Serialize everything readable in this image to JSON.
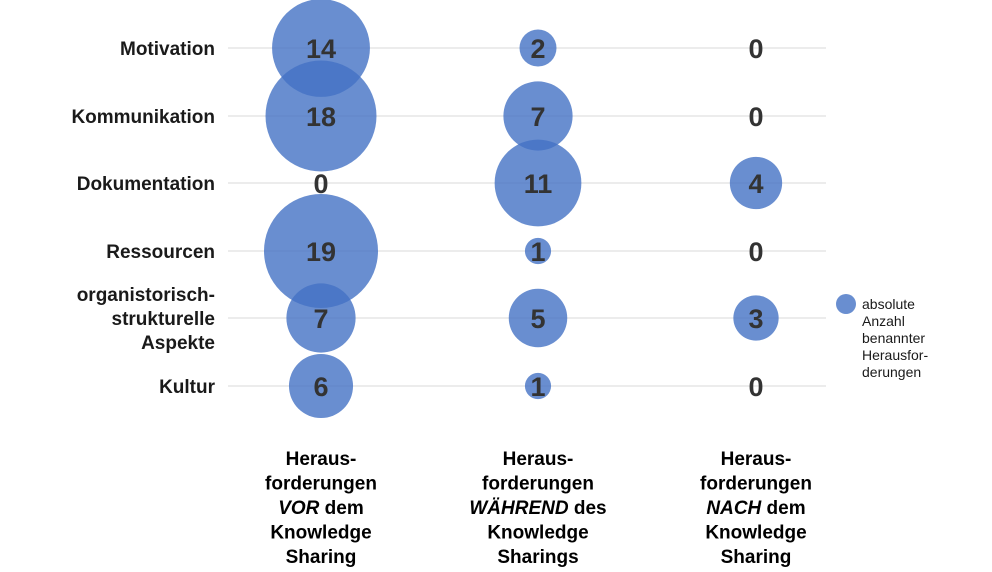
{
  "chart_data": {
    "type": "bubble",
    "rows": [
      "Motivation",
      "Kommunikation",
      "Dokumentation",
      "Ressourcen",
      "organistorisch-strukturelle Aspekte",
      "Kultur"
    ],
    "row_label_lines": [
      [
        "Motivation"
      ],
      [
        "Kommunikation"
      ],
      [
        "Dokumentation"
      ],
      [
        "Ressourcen"
      ],
      [
        "organistorisch-",
        "strukturelle",
        "Aspekte"
      ],
      [
        "Kultur"
      ]
    ],
    "columns": [
      {
        "lines": [
          {
            "segments": [
              {
                "text": "Heraus-",
                "italic": false
              }
            ]
          },
          {
            "segments": [
              {
                "text": "forderungen",
                "italic": false
              }
            ]
          },
          {
            "segments": [
              {
                "text": "VOR",
                "italic": true
              },
              {
                "text": " dem",
                "italic": false
              }
            ]
          },
          {
            "segments": [
              {
                "text": "Knowledge",
                "italic": false
              }
            ]
          },
          {
            "segments": [
              {
                "text": "Sharing",
                "italic": false
              }
            ]
          }
        ]
      },
      {
        "lines": [
          {
            "segments": [
              {
                "text": "Heraus-",
                "italic": false
              }
            ]
          },
          {
            "segments": [
              {
                "text": "forderungen",
                "italic": false
              }
            ]
          },
          {
            "segments": [
              {
                "text": "WÄHREND",
                "italic": true
              },
              {
                "text": " des",
                "italic": false
              }
            ]
          },
          {
            "segments": [
              {
                "text": "Knowledge",
                "italic": false
              }
            ]
          },
          {
            "segments": [
              {
                "text": "Sharings",
                "italic": false
              }
            ]
          }
        ]
      },
      {
        "lines": [
          {
            "segments": [
              {
                "text": "Heraus-",
                "italic": false
              }
            ]
          },
          {
            "segments": [
              {
                "text": "forderungen",
                "italic": false
              }
            ]
          },
          {
            "segments": [
              {
                "text": "NACH",
                "italic": true
              },
              {
                "text": " dem",
                "italic": false
              }
            ]
          },
          {
            "segments": [
              {
                "text": "Knowledge",
                "italic": false
              }
            ]
          },
          {
            "segments": [
              {
                "text": "Sharing",
                "italic": false
              }
            ]
          }
        ]
      }
    ],
    "series": [
      {
        "name": "absolute Anzahl benannter Herausforderungen",
        "values": [
          [
            14,
            2,
            0
          ],
          [
            18,
            7,
            0
          ],
          [
            0,
            11,
            4
          ],
          [
            19,
            1,
            0
          ],
          [
            7,
            5,
            3
          ],
          [
            6,
            1,
            0
          ]
        ]
      }
    ],
    "legend": {
      "position": "right",
      "lines": [
        "absolute",
        "Anzahl",
        "benannter",
        "Heraus­for-",
        "derungen"
      ]
    },
    "gridlines": true,
    "colors": {
      "bubble": "#4472C4",
      "gridline": "#d9d9d9",
      "value_text": "#333333"
    }
  }
}
